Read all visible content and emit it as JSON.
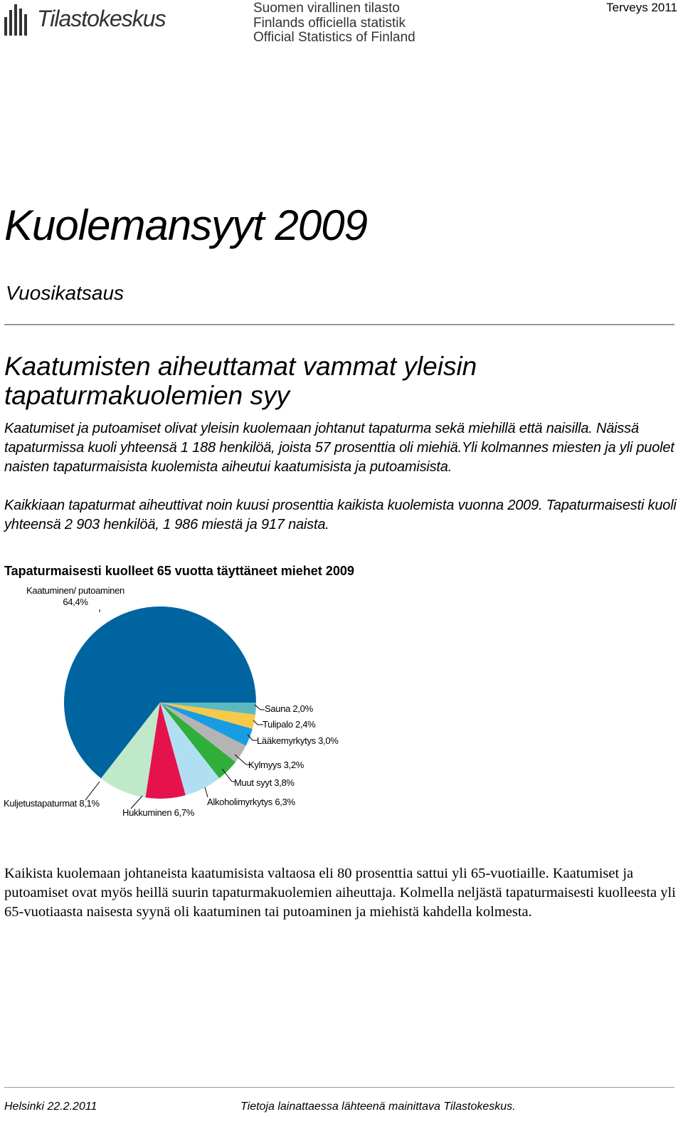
{
  "header": {
    "logo": "Tilastokeskus",
    "official": [
      "Suomen virallinen tilasto",
      "Finlands officiella statistik",
      "Official Statistics of Finland"
    ],
    "series": "Terveys 2011"
  },
  "title": "Kuolemansyyt 2009",
  "subtitle": "Vuosikatsaus",
  "heading": "Kaatumisten aiheuttamat vammat yleisin tapaturmakuolemien syy",
  "paragraphs": [
    "Kaatumiset ja putoamiset olivat yleisin kuolemaan johtanut tapaturma sekä miehillä että naisilla. Näissä tapaturmissa kuoli yhteensä 1 188 henkilöä, joista 57 prosenttia oli miehiä.Yli kolmannes miesten ja yli puolet naisten tapaturmaisista kuolemista aiheutui kaatumisista ja putoamisista.",
    "Kaikkiaan tapaturmat aiheuttivat noin kuusi prosenttia kaikista kuolemista vuonna 2009. Tapaturmaisesti kuoli yhteensä 2 903 henkilöä, 1 986 miestä ja 917 naista."
  ],
  "chart_data": {
    "type": "pie",
    "title": "Tapaturmaisesti kuolleet 65 vuotta täyttäneet miehet 2009",
    "categories": [
      "Sauna",
      "Tulipalo",
      "Lääkemyrkytys",
      "Kylmyys",
      "Muut syyt",
      "Alkoholimyrkytys",
      "Hukkuminen",
      "Kuljetustapaturmat",
      "Kaatuminen/ putoaminen"
    ],
    "values": [
      2.0,
      2.4,
      3.0,
      3.2,
      3.8,
      6.3,
      6.7,
      8.1,
      64.4
    ],
    "value_labels": [
      "2,0%",
      "2,4%",
      "3,0%",
      "3,2%",
      "3,8%",
      "6,3%",
      "6,7%",
      "8,1%",
      "64,4%"
    ],
    "colors": [
      "#5cb9c2",
      "#f7c948",
      "#1a9de0",
      "#b4b4b4",
      "#2fae3a",
      "#b0dff2",
      "#e6124c",
      "#bfe9c9",
      "#0064a0"
    ]
  },
  "closing_paragraph": "Kaikista kuolemaan johtaneista kaatumisista valtaosa eli 80 prosenttia sattui yli 65-vuotiaille. Kaatumiset ja putoamiset ovat myös heillä suurin tapaturmakuolemien aiheuttaja. Kolmella neljästä tapaturmaisesti kuolleesta yli 65-vuotiaasta naisesta syynä oli kaatuminen tai putoaminen ja miehistä kahdella kolmesta.",
  "footer": {
    "left": "Helsinki 22.2.2011",
    "right": "Tietoja lainattaessa lähteenä mainittava Tilastokeskus."
  }
}
